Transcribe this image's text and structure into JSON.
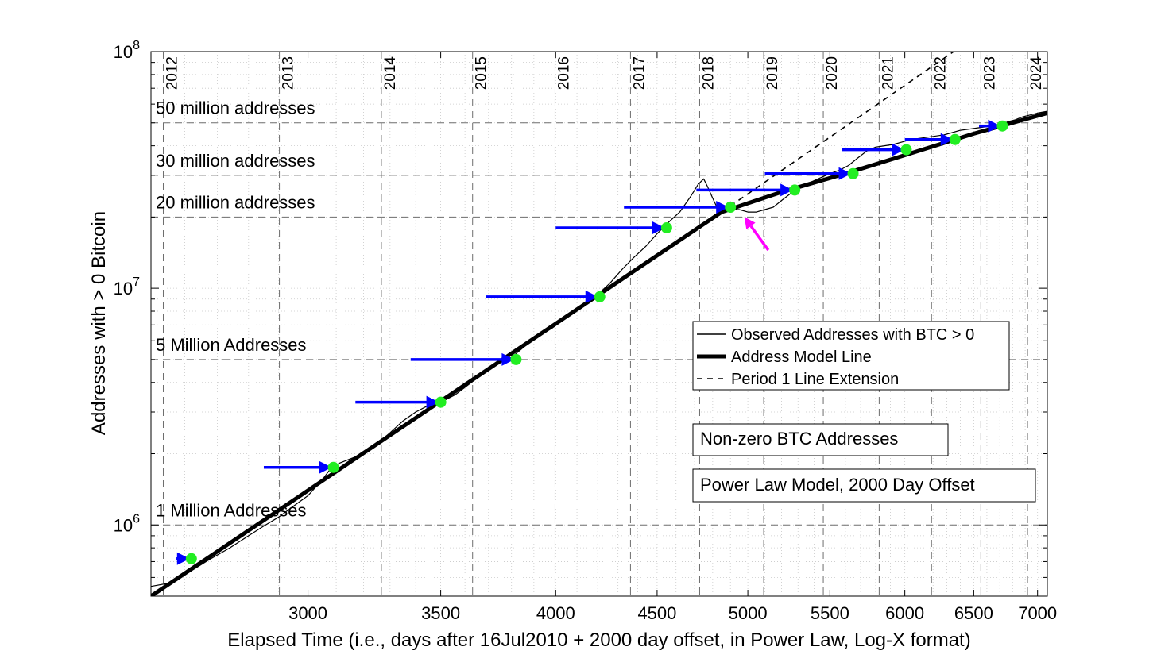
{
  "chart_data": {
    "type": "line",
    "title": "",
    "xlabel": "Elapsed Time (i.e., days after 16Jul2010 + 2000 day offset, in Power Law, Log-X format)",
    "ylabel": "Addresses with > 0 Bitcoin",
    "x_scale": "log",
    "y_scale": "log",
    "xlim": [
      2500,
      7080
    ],
    "ylim": [
      500000,
      100000000
    ],
    "x_ticks": [
      3000,
      3500,
      4000,
      4500,
      5000,
      5500,
      6000,
      6500,
      7000
    ],
    "x_tick_labels": [
      "3000",
      "3500",
      "4000",
      "4500",
      "5000",
      "5500",
      "6000",
      "6500",
      "7000"
    ],
    "y_ticks": [
      {
        "value": 1000000,
        "base": "10",
        "exp": "6"
      },
      {
        "value": 10000000,
        "base": "10",
        "exp": "7"
      },
      {
        "value": 100000000,
        "base": "10",
        "exp": "8"
      }
    ],
    "grid": true,
    "year_lines": [
      {
        "label": "2012",
        "x": 2536
      },
      {
        "label": "2013",
        "x": 2902
      },
      {
        "label": "2014",
        "x": 3267
      },
      {
        "label": "2015",
        "x": 3632
      },
      {
        "label": "2016",
        "x": 3997
      },
      {
        "label": "2017",
        "x": 4363
      },
      {
        "label": "2018",
        "x": 4728
      },
      {
        "label": "2019",
        "x": 5093
      },
      {
        "label": "2020",
        "x": 5458
      },
      {
        "label": "2021",
        "x": 5824
      },
      {
        "label": "2022",
        "x": 6189
      },
      {
        "label": "2023",
        "x": 6554
      },
      {
        "label": "2024",
        "x": 6919
      }
    ],
    "reference_lines": [
      {
        "label": "50 million addresses",
        "y": 50000000
      },
      {
        "label": "30 million addresses",
        "y": 30000000
      },
      {
        "label": "20 million addresses",
        "y": 20000000
      },
      {
        "label": "5 Million Addresses",
        "y": 5000000
      },
      {
        "label": "1 Million Addresses",
        "y": 1000000
      }
    ],
    "series": [
      {
        "name": "Observed Addresses with BTC > 0",
        "style": "thin",
        "x": [
          2500,
          2560,
          2620,
          2680,
          2740,
          2800,
          2850,
          2900,
          2950,
          3000,
          3050,
          3080,
          3110,
          3150,
          3200,
          3250,
          3300,
          3350,
          3400,
          3450,
          3500,
          3560,
          3620,
          3680,
          3740,
          3800,
          3860,
          3920,
          3980,
          4040,
          4100,
          4150,
          4200,
          4260,
          4320,
          4380,
          4440,
          4500,
          4560,
          4620,
          4680,
          4720,
          4750,
          4770,
          4800,
          4830,
          4860,
          4900,
          4950,
          5000,
          5050,
          5100,
          5150,
          5200,
          5250,
          5300,
          5350,
          5400,
          5450,
          5500,
          5560,
          5620,
          5680,
          5740,
          5800,
          5860,
          5920,
          5980,
          6040,
          6100,
          6160,
          6220,
          6280,
          6340,
          6400,
          6460,
          6520,
          6580,
          6640,
          6700,
          6760,
          6820,
          6880,
          6940,
          7000,
          7080
        ],
        "y": [
          550000,
          570000,
          640000,
          720000,
          800000,
          900000,
          990000,
          1080000,
          1200000,
          1330000,
          1550000,
          1730000,
          1820000,
          1900000,
          2000000,
          2200000,
          2450000,
          2750000,
          3000000,
          3200000,
          3300000,
          3550000,
          3950000,
          4400000,
          4800000,
          5100000,
          5700000,
          6300000,
          6750000,
          7400000,
          8200000,
          8800000,
          9400000,
          10500000,
          12000000,
          13500000,
          15000000,
          17000000,
          19000000,
          21000000,
          24500000,
          27500000,
          29000000,
          27000000,
          24000000,
          21500000,
          21000000,
          21500000,
          21500000,
          21000000,
          21000000,
          21500000,
          22000000,
          23500000,
          25000000,
          26500000,
          27500000,
          28500000,
          29500000,
          30500000,
          31500000,
          33000000,
          35500000,
          38000000,
          39500000,
          40000000,
          40500000,
          41500000,
          42500000,
          43000000,
          43500000,
          44000000,
          44500000,
          45500000,
          46500000,
          47000000,
          47500000,
          48000000,
          48500000,
          49000000,
          50500000,
          51500000,
          53000000,
          54000000,
          55000000,
          56000000
        ]
      },
      {
        "name": "Address Model Line",
        "style": "thick",
        "x": [
          2500,
          4850,
          5200,
          5600,
          6000,
          6500,
          7080
        ],
        "y": [
          500000,
          21000000,
          25500000,
          30500000,
          36500000,
          45000000,
          55000000
        ]
      },
      {
        "name": "Period 1 Line Extension",
        "style": "dashed",
        "x": [
          4850,
          6350
        ],
        "y": [
          21000000,
          100000000
        ]
      }
    ],
    "markers": [
      {
        "x": 2620,
        "y": 720000,
        "arrow_from_x": 2575
      },
      {
        "x": 3090,
        "y": 1750000,
        "arrow_from_x": 2850
      },
      {
        "x": 3500,
        "y": 3300000,
        "arrow_from_x": 3170
      },
      {
        "x": 3820,
        "y": 5000000,
        "arrow_from_x": 3380
      },
      {
        "x": 4210,
        "y": 9200000,
        "arrow_from_x": 3690
      },
      {
        "x": 4550,
        "y": 18000000,
        "arrow_from_x": 4000
      },
      {
        "x": 4900,
        "y": 22000000,
        "arrow_from_x": 4330
      },
      {
        "x": 5280,
        "y": 26000000,
        "arrow_from_x": 4710
      },
      {
        "x": 5650,
        "y": 30500000,
        "arrow_from_x": 5100
      },
      {
        "x": 6010,
        "y": 38500000,
        "arrow_from_x": 5580
      },
      {
        "x": 6360,
        "y": 42500000,
        "arrow_from_x": 6000
      },
      {
        "x": 6720,
        "y": 48500000,
        "arrow_from_x": 6540
      }
    ],
    "highlight_arrow": {
      "from_x": 5120,
      "from_y": 14500000,
      "to_x": 4980,
      "to_y": 20000000,
      "color": "#ff00ff"
    },
    "legend": {
      "placement": "center-right",
      "entries": [
        "Observed Addresses with BTC > 0",
        "Address Model Line",
        "Period 1 Line Extension"
      ]
    },
    "text_boxes": [
      "Non-zero BTC Addresses",
      "Power Law Model, 2000 Day Offset"
    ],
    "colors": {
      "arrow": "#0000ff",
      "marker": "#22ee22",
      "highlight": "#ff00ff",
      "line": "#000000",
      "grid": "#c8c8c8",
      "dashed_grid": "#6e6e6e"
    }
  }
}
